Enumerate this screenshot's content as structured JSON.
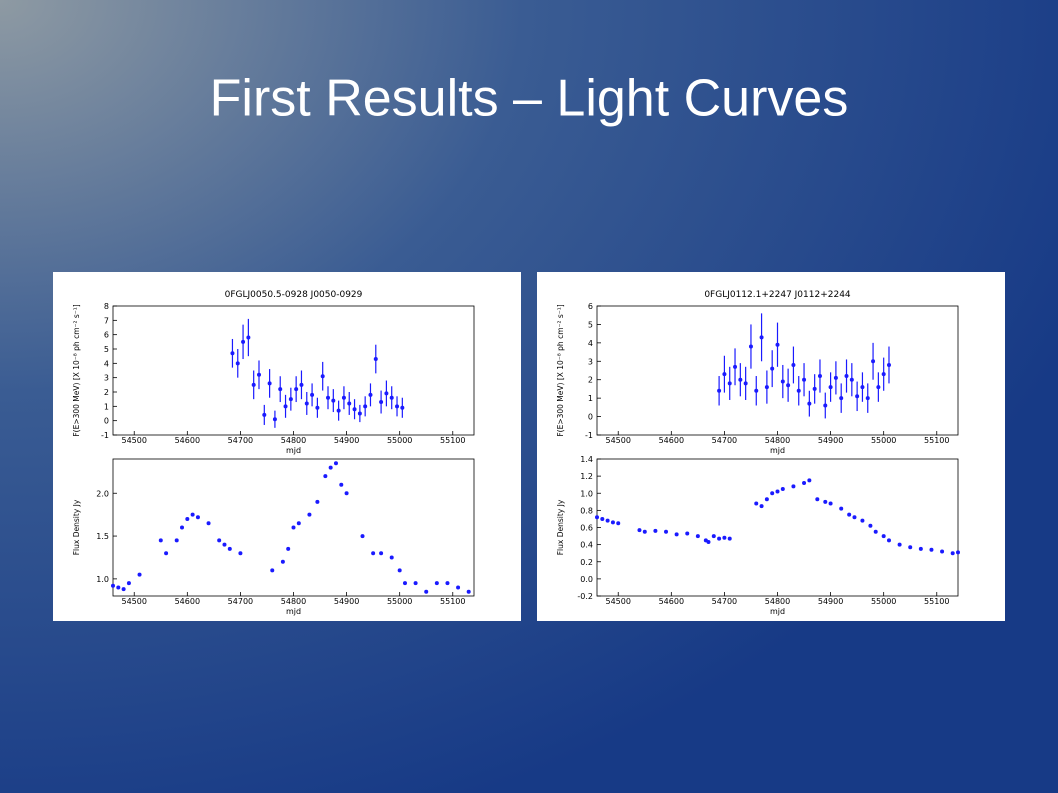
{
  "title": "First Results – Light Curves",
  "chart_data": [
    {
      "type": "scatter",
      "title": "0FGLJ0050.5-0928   J0050-0929",
      "xlabel": "mjd",
      "ylabel": "F(E>300 MeV) [X 10⁻⁸ ph cm⁻² s⁻¹]",
      "color": "#1a1aff",
      "x": [
        54685,
        54695,
        54705,
        54715,
        54725,
        54735,
        54745,
        54755,
        54765,
        54775,
        54785,
        54795,
        54805,
        54815,
        54825,
        54835,
        54845,
        54855,
        54865,
        54875,
        54885,
        54895,
        54905,
        54915,
        54925,
        54935,
        54945,
        54955,
        54965,
        54975,
        54985,
        54995,
        55005
      ],
      "values": [
        4.7,
        4.0,
        5.5,
        5.8,
        2.5,
        3.2,
        0.4,
        2.6,
        0.1,
        2.2,
        1.0,
        1.5,
        2.2,
        2.5,
        1.2,
        1.8,
        0.9,
        3.1,
        1.6,
        1.4,
        0.7,
        1.6,
        1.2,
        0.8,
        0.5,
        1.0,
        1.8,
        4.3,
        1.3,
        1.9,
        1.6,
        1.0,
        0.9
      ],
      "errors": [
        1.0,
        1.0,
        1.2,
        1.3,
        1.0,
        1.0,
        0.7,
        1.0,
        0.6,
        0.9,
        0.8,
        0.8,
        0.9,
        1.0,
        0.8,
        0.8,
        0.7,
        1.0,
        0.8,
        0.8,
        0.7,
        0.8,
        0.8,
        0.7,
        0.6,
        0.7,
        0.8,
        1.0,
        0.8,
        0.9,
        0.8,
        0.7,
        0.7
      ],
      "xlim": [
        54460,
        55140
      ],
      "xticks": [
        54500,
        54600,
        54700,
        54800,
        54900,
        55000,
        55100
      ],
      "ylim": [
        -1,
        8
      ],
      "yticks": [
        -1,
        0,
        1,
        2,
        3,
        4,
        5,
        6,
        7,
        8
      ]
    },
    {
      "type": "scatter",
      "xlabel": "mjd",
      "ylabel": "Flux Density Jy",
      "color": "#1a1aff",
      "x": [
        54460,
        54470,
        54480,
        54490,
        54510,
        54550,
        54560,
        54580,
        54590,
        54600,
        54610,
        54620,
        54640,
        54660,
        54670,
        54680,
        54700,
        54760,
        54780,
        54790,
        54800,
        54810,
        54830,
        54845,
        54860,
        54870,
        54880,
        54890,
        54900,
        54930,
        54950,
        54965,
        54985,
        55000,
        55010,
        55030,
        55050,
        55070,
        55090,
        55110,
        55130
      ],
      "values": [
        0.92,
        0.9,
        0.88,
        0.95,
        1.05,
        1.45,
        1.3,
        1.45,
        1.6,
        1.7,
        1.75,
        1.72,
        1.65,
        1.45,
        1.4,
        1.35,
        1.3,
        1.1,
        1.2,
        1.35,
        1.6,
        1.65,
        1.75,
        1.9,
        2.2,
        2.3,
        2.35,
        2.1,
        2.0,
        1.5,
        1.3,
        1.3,
        1.25,
        1.1,
        0.95,
        0.95,
        0.85,
        0.95,
        0.95,
        0.9,
        0.85
      ],
      "xlim": [
        54460,
        55140
      ],
      "xticks": [
        54500,
        54600,
        54700,
        54800,
        54900,
        55000,
        55100
      ],
      "ylim": [
        0.8,
        2.4
      ],
      "yticks": [
        {
          "value": 1.0,
          "label": "1.0"
        },
        1.5,
        {
          "value": 2.0,
          "label": "2.0"
        }
      ]
    },
    {
      "type": "scatter",
      "title": "0FGLJ0112.1+2247   J0112+2244",
      "xlabel": "mjd",
      "ylabel": "F(E>300 MeV) [X 10⁻⁸ ph cm⁻² s⁻¹]",
      "color": "#1a1aff",
      "x": [
        54690,
        54700,
        54710,
        54720,
        54730,
        54740,
        54750,
        54760,
        54770,
        54780,
        54790,
        54800,
        54810,
        54820,
        54830,
        54840,
        54850,
        54860,
        54870,
        54880,
        54890,
        54900,
        54910,
        54920,
        54930,
        54940,
        54950,
        54960,
        54970,
        54980,
        54990,
        55000,
        55010
      ],
      "values": [
        1.4,
        2.3,
        1.8,
        2.7,
        2.0,
        1.8,
        3.8,
        1.4,
        4.3,
        1.6,
        2.6,
        3.9,
        1.9,
        1.7,
        2.8,
        1.4,
        2.0,
        0.7,
        1.5,
        2.2,
        0.6,
        1.6,
        2.1,
        1.0,
        2.2,
        2.0,
        1.1,
        1.6,
        1.0,
        3.0,
        1.6,
        2.3,
        2.8
      ],
      "errors": [
        0.8,
        1.0,
        0.9,
        1.0,
        0.9,
        0.9,
        1.2,
        0.8,
        1.3,
        0.9,
        1.0,
        1.2,
        0.9,
        0.9,
        1.0,
        0.8,
        0.9,
        0.7,
        0.8,
        0.9,
        0.7,
        0.8,
        0.9,
        0.8,
        0.9,
        0.9,
        0.8,
        0.8,
        0.8,
        1.0,
        0.8,
        0.9,
        1.0
      ],
      "xlim": [
        54460,
        55140
      ],
      "xticks": [
        54500,
        54600,
        54700,
        54800,
        54900,
        55000,
        55100
      ],
      "ylim": [
        -1,
        6
      ],
      "yticks": [
        -1,
        0,
        1,
        2,
        3,
        4,
        5,
        6
      ]
    },
    {
      "type": "scatter",
      "xlabel": "mjd",
      "ylabel": "Flux Density Jy",
      "color": "#1a1aff",
      "x": [
        54460,
        54470,
        54480,
        54490,
        54500,
        54540,
        54550,
        54570,
        54590,
        54610,
        54630,
        54650,
        54665,
        54670,
        54680,
        54690,
        54700,
        54710,
        54760,
        54770,
        54780,
        54790,
        54800,
        54810,
        54830,
        54850,
        54860,
        54875,
        54890,
        54900,
        54920,
        54935,
        54945,
        54960,
        54975,
        54985,
        55000,
        55010,
        55030,
        55050,
        55070,
        55090,
        55110,
        55130,
        55140
      ],
      "values": [
        0.72,
        0.7,
        0.68,
        0.66,
        0.65,
        0.57,
        0.55,
        0.56,
        0.55,
        0.52,
        0.53,
        0.5,
        0.45,
        0.43,
        0.5,
        0.47,
        0.48,
        0.47,
        0.88,
        0.85,
        0.93,
        1.0,
        1.02,
        1.05,
        1.08,
        1.12,
        1.15,
        0.93,
        0.9,
        0.88,
        0.82,
        0.75,
        0.72,
        0.68,
        0.62,
        0.55,
        0.5,
        0.45,
        0.4,
        0.37,
        0.35,
        0.34,
        0.32,
        0.3,
        0.31
      ],
      "xlim": [
        54460,
        55140
      ],
      "xticks": [
        54500,
        54600,
        54700,
        54800,
        54900,
        55000,
        55100
      ],
      "ylim": [
        -0.2,
        1.4
      ],
      "yticks": [
        -0.2,
        {
          "value": 0.0,
          "label": "0.0"
        },
        0.2,
        0.4,
        0.6,
        0.8,
        {
          "value": 1.0,
          "label": "1.0"
        },
        1.2,
        1.4
      ]
    }
  ]
}
